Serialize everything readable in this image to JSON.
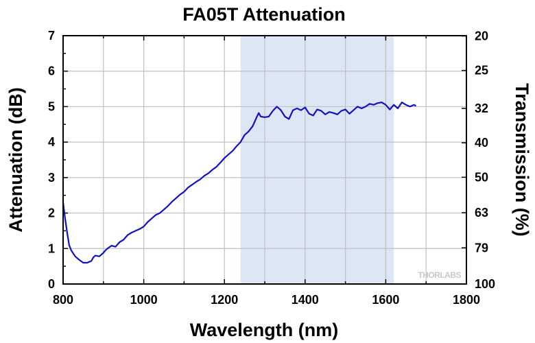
{
  "chart_data": {
    "type": "line",
    "title": "FA05T Attenuation",
    "xlabel": "Wavelength (nm)",
    "ylabel": "Attenuation (dB)",
    "y2label": "Transmission (%)",
    "xlim": [
      800,
      1800
    ],
    "ylim": [
      0,
      7
    ],
    "x_ticks": [
      "800",
      "1000",
      "1200",
      "1400",
      "1600",
      "1800"
    ],
    "y_ticks": [
      "0",
      "1",
      "2",
      "3",
      "4",
      "5",
      "6",
      "7"
    ],
    "y2_ticks": [
      {
        "label": "100",
        "db": 0
      },
      {
        "label": "79",
        "db": 1.02
      },
      {
        "label": "63",
        "db": 2.01
      },
      {
        "label": "50",
        "db": 3.01
      },
      {
        "label": "40",
        "db": 3.98
      },
      {
        "label": "32",
        "db": 4.95
      },
      {
        "label": "25",
        "db": 6.02
      },
      {
        "label": "20",
        "db": 6.99
      }
    ],
    "grid": true,
    "shaded_band": {
      "x_start": 1240,
      "x_end": 1620,
      "color": "#dce6f5"
    },
    "series": [
      {
        "color": "#1010c8",
        "x": [
          800,
          805,
          810,
          815,
          820,
          830,
          840,
          850,
          860,
          870,
          875,
          880,
          890,
          900,
          905,
          910,
          920,
          930,
          940,
          950,
          960,
          970,
          980,
          990,
          1000,
          1010,
          1020,
          1030,
          1040,
          1050,
          1060,
          1070,
          1080,
          1090,
          1100,
          1110,
          1120,
          1130,
          1140,
          1150,
          1160,
          1170,
          1180,
          1190,
          1200,
          1210,
          1220,
          1230,
          1240,
          1250,
          1260,
          1270,
          1280,
          1285,
          1290,
          1300,
          1310,
          1320,
          1330,
          1340,
          1350,
          1360,
          1370,
          1380,
          1390,
          1400,
          1410,
          1420,
          1430,
          1440,
          1450,
          1460,
          1470,
          1480,
          1490,
          1500,
          1510,
          1520,
          1530,
          1540,
          1550,
          1560,
          1570,
          1580,
          1590,
          1600,
          1610,
          1620,
          1630,
          1640,
          1650,
          1660,
          1670,
          1675
        ],
        "y": [
          2.3,
          1.85,
          1.45,
          1.1,
          0.95,
          0.78,
          0.68,
          0.6,
          0.6,
          0.65,
          0.75,
          0.8,
          0.78,
          0.88,
          0.95,
          1.0,
          1.08,
          1.05,
          1.18,
          1.25,
          1.38,
          1.45,
          1.5,
          1.55,
          1.62,
          1.75,
          1.85,
          1.95,
          2.0,
          2.1,
          2.2,
          2.32,
          2.42,
          2.52,
          2.6,
          2.72,
          2.8,
          2.88,
          2.95,
          3.05,
          3.12,
          3.22,
          3.3,
          3.42,
          3.55,
          3.65,
          3.75,
          3.88,
          4.0,
          4.2,
          4.3,
          4.45,
          4.7,
          4.82,
          4.72,
          4.7,
          4.72,
          4.88,
          5.0,
          4.9,
          4.72,
          4.65,
          4.9,
          4.95,
          4.9,
          4.98,
          4.8,
          4.75,
          4.92,
          4.88,
          4.78,
          4.85,
          4.82,
          4.78,
          4.88,
          4.92,
          4.8,
          4.9,
          5.0,
          4.95,
          5.0,
          5.08,
          5.05,
          5.1,
          5.12,
          5.05,
          4.92,
          5.05,
          4.95,
          5.12,
          5.05,
          5.0,
          5.05,
          5.02
        ]
      }
    ]
  },
  "watermark": "THORLABS"
}
